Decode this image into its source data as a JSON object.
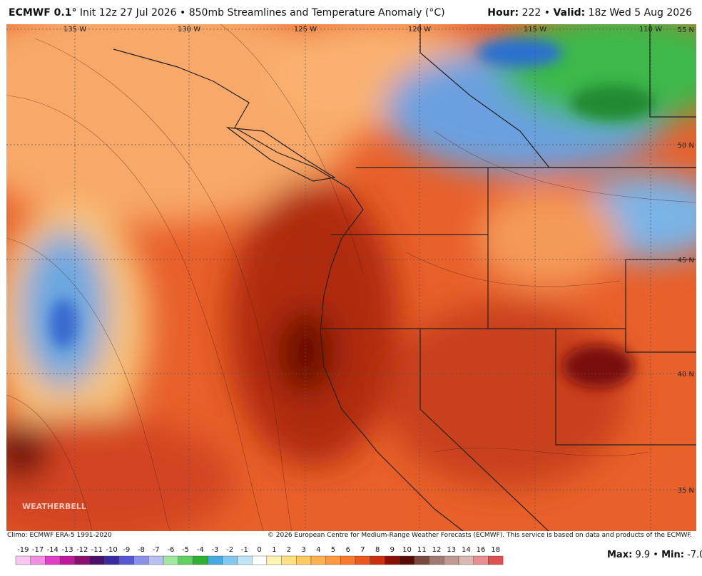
{
  "header": {
    "model": "ECMWF 0.1°",
    "title": "Init 12z 27 Jul 2026 • 850mb Streamlines and Temperature Anomaly (°C)",
    "hour_label": "Hour:",
    "hour": "222 •",
    "valid_label": "Valid:",
    "valid": "18z Wed 5 Aug 2026"
  },
  "map": {
    "longitudes": [
      "135 W",
      "130 W",
      "125 W",
      "120 W",
      "115 W",
      "110 W"
    ],
    "latitudes": [
      "55 N",
      "50 N",
      "45 N",
      "40 N",
      "35 N"
    ],
    "watermark": "WEATHERBELL"
  },
  "footer": {
    "climo": "Climo: ECMWF ERA-5 1991-2020",
    "copyright": "© 2026 European Centre for Medium-Range Weather Forecasts (ECMWF). This service is based on data and products of the ECMWF."
  },
  "legend": {
    "items": [
      {
        "label": "-19",
        "color": "#f9c6f0"
      },
      {
        "label": "-17",
        "color": "#f08ee0"
      },
      {
        "label": "-14",
        "color": "#e040c8"
      },
      {
        "label": "-13",
        "color": "#c0189c"
      },
      {
        "label": "-12",
        "color": "#8a1070"
      },
      {
        "label": "-11",
        "color": "#4b0f6b"
      },
      {
        "label": "-10",
        "color": "#3a2ba0"
      },
      {
        "label": "-9",
        "color": "#5a58d0"
      },
      {
        "label": "-8",
        "color": "#8a90e8"
      },
      {
        "label": "-7",
        "color": "#b8c0f0"
      },
      {
        "label": "-6",
        "color": "#a0e8a0"
      },
      {
        "label": "-5",
        "color": "#60d060"
      },
      {
        "label": "-4",
        "color": "#30b030"
      },
      {
        "label": "-3",
        "color": "#48a8e0"
      },
      {
        "label": "-2",
        "color": "#80c8f0"
      },
      {
        "label": "-1",
        "color": "#c0e4f8"
      },
      {
        "label": "0",
        "color": "#ffffff"
      },
      {
        "label": "1",
        "color": "#fff4b0"
      },
      {
        "label": "2",
        "color": "#ffe080"
      },
      {
        "label": "3",
        "color": "#ffc860"
      },
      {
        "label": "4",
        "color": "#ffb050"
      },
      {
        "label": "5",
        "color": "#ff9840"
      },
      {
        "label": "6",
        "color": "#f87830"
      },
      {
        "label": "7",
        "color": "#e85820"
      },
      {
        "label": "8",
        "color": "#c83010"
      },
      {
        "label": "9",
        "color": "#8a1008"
      },
      {
        "label": "10",
        "color": "#5a0a05"
      },
      {
        "label": "11",
        "color": "#7a4a40"
      },
      {
        "label": "12",
        "color": "#a07870"
      },
      {
        "label": "13",
        "color": "#c09890"
      },
      {
        "label": "14",
        "color": "#d8b8b0"
      },
      {
        "label": "16",
        "color": "#e89090"
      },
      {
        "label": "18",
        "color": "#e05050"
      }
    ],
    "max_label": "Max:",
    "max": "9.9",
    "separator": "•",
    "min_label": "Min:",
    "min": "-7.0"
  }
}
